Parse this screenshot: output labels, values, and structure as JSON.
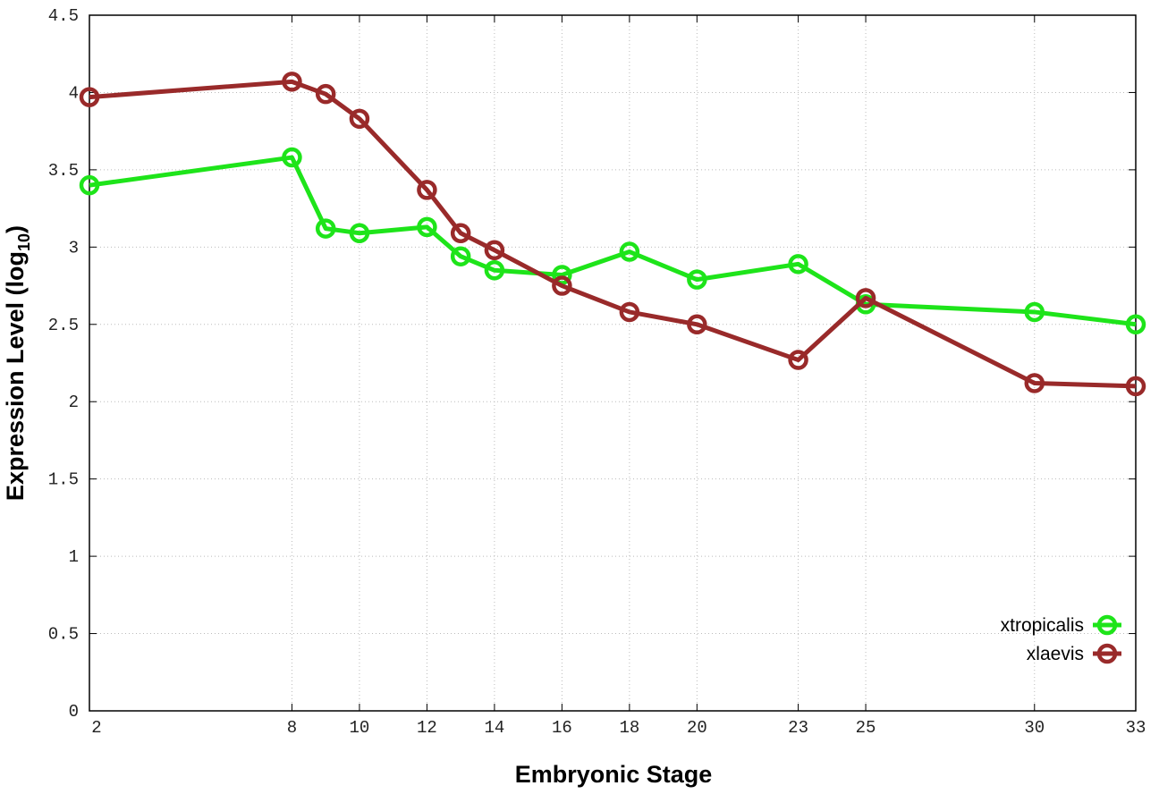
{
  "chart_data": {
    "type": "line",
    "title": "",
    "xlabel": "Embryonic Stage",
    "ylabel": "Expression Level (log",
    "ylabel_sub": "10",
    "ylabel_end": ")",
    "xlim": [
      2,
      33
    ],
    "ylim": [
      0,
      4.5
    ],
    "xticks": [
      2,
      8,
      10,
      12,
      14,
      16,
      18,
      20,
      23,
      25,
      30,
      33
    ],
    "yticks": [
      "0",
      "0.5",
      "1",
      "1.5",
      "2",
      "2.5",
      "3",
      "3.5",
      "4",
      "4.5"
    ],
    "grid": true,
    "legend_position": "bottom-right",
    "x": [
      2,
      8,
      9,
      10,
      12,
      13,
      14,
      16,
      18,
      20,
      23,
      25,
      30,
      33
    ],
    "series": [
      {
        "name": "xtropicalis",
        "color": "#1ee41a",
        "values": [
          3.4,
          3.58,
          3.12,
          3.09,
          3.13,
          2.94,
          2.85,
          2.82,
          2.97,
          2.79,
          2.89,
          2.63,
          2.58,
          2.5
        ]
      },
      {
        "name": "xlaevis",
        "color": "#992a2a",
        "values": [
          3.97,
          4.07,
          3.99,
          3.83,
          3.37,
          3.09,
          2.98,
          2.75,
          2.58,
          2.5,
          2.27,
          2.67,
          2.12,
          2.1
        ]
      }
    ]
  }
}
